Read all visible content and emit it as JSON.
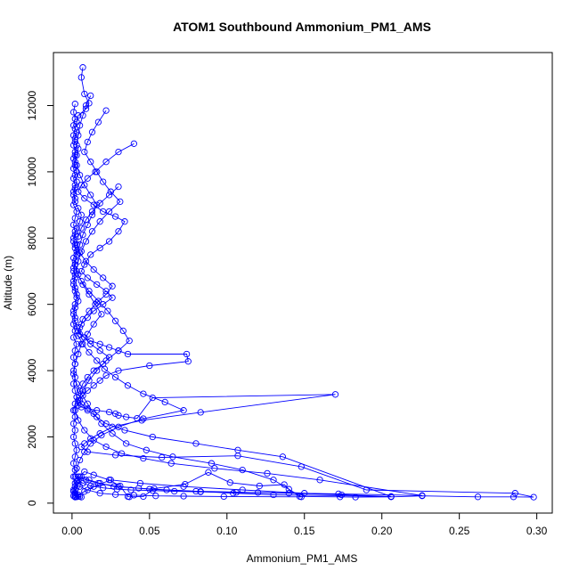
{
  "chart_data": {
    "type": "line",
    "title": "ATOM1 Southbound Ammonium_PM1_AMS",
    "xlabel": "Ammonium_PM1_AMS",
    "ylabel": "Altitude (m)",
    "xlim": [
      -0.012,
      0.31
    ],
    "ylim": [
      -300,
      13600
    ],
    "x_ticks": [
      0.0,
      0.05,
      0.1,
      0.15,
      0.2,
      0.25,
      0.3
    ],
    "x_tick_labels": [
      "0.00",
      "0.05",
      "0.10",
      "0.15",
      "0.20",
      "0.25",
      "0.30"
    ],
    "y_ticks": [
      0,
      2000,
      4000,
      6000,
      8000,
      10000,
      12000
    ],
    "y_tick_labels": [
      "0",
      "2000",
      "4000",
      "6000",
      "8000",
      "10000",
      "12000"
    ],
    "grid": false,
    "marker": "open-circle",
    "color": "#0000ff",
    "series": [
      {
        "x": [
          0.007,
          0.006,
          0.008,
          0.011,
          0.009,
          0.004,
          0.003,
          0.002,
          0.001,
          0.002,
          0.004,
          0.003,
          0.002,
          0.001,
          0.002,
          0.003,
          0.002,
          0.001,
          0.002,
          0.004,
          0.006,
          0.005,
          0.003,
          0.002,
          0.001,
          0.002,
          0.003,
          0.002,
          0.001,
          0.002,
          0.001,
          0.002,
          0.003,
          0.004,
          0.002,
          0.001,
          0.002,
          0.003,
          0.005,
          0.008,
          0.012,
          0.018,
          0.024,
          0.03,
          0.036,
          0.074,
          0.075,
          0.05,
          0.03,
          0.022,
          0.018,
          0.014,
          0.01,
          0.007,
          0.005,
          0.004,
          0.006,
          0.01,
          0.016,
          0.024,
          0.028,
          0.03,
          0.035,
          0.042,
          0.052,
          0.17,
          0.083,
          0.045,
          0.026,
          0.018,
          0.012,
          0.008,
          0.006,
          0.01,
          0.028,
          0.058,
          0.107,
          0.148,
          0.19,
          0.286,
          0.298,
          0.285,
          0.262,
          0.226,
          0.206,
          0.183,
          0.173,
          0.147,
          0.14,
          0.137,
          0.121,
          0.102,
          0.088,
          0.073,
          0.053,
          0.046,
          0.037,
          0.036,
          0.031,
          0.024,
          0.014,
          0.008,
          0.005,
          0.003,
          0.002,
          0.001,
          0.002,
          0.004,
          0.006,
          0.005,
          0.003,
          0.002
        ],
        "y": [
          13150,
          12850,
          12350,
          12070,
          11900,
          11700,
          11500,
          11300,
          11100,
          10900,
          10700,
          10500,
          10300,
          10100,
          9900,
          9700,
          9500,
          9300,
          9100,
          8900,
          8700,
          8500,
          8300,
          8100,
          7900,
          7700,
          7500,
          7300,
          7100,
          6900,
          6700,
          6500,
          6300,
          6100,
          5900,
          5700,
          5500,
          5300,
          5100,
          5000,
          4900,
          4800,
          4700,
          4600,
          4500,
          4500,
          4280,
          4150,
          4000,
          3850,
          3700,
          3550,
          3400,
          3250,
          3100,
          2950,
          2900,
          2850,
          2800,
          2750,
          2700,
          2650,
          2600,
          2560,
          3180,
          3280,
          2740,
          2500,
          2300,
          2100,
          1950,
          1800,
          1700,
          1550,
          1450,
          1380,
          1430,
          1100,
          400,
          300,
          180,
          190,
          190,
          220,
          190,
          180,
          190,
          200,
          420,
          560,
          520,
          620,
          930,
          570,
          440,
          200,
          190,
          200,
          520,
          700,
          850,
          950,
          800,
          650,
          500,
          350,
          250,
          200,
          180,
          200,
          190,
          180
        ]
      },
      {
        "x": [
          0.04,
          0.03,
          0.022,
          0.015,
          0.01,
          0.006,
          0.004,
          0.008,
          0.014,
          0.02,
          0.028,
          0.034,
          0.03,
          0.024,
          0.018,
          0.012,
          0.008,
          0.006,
          0.01,
          0.016,
          0.022,
          0.026,
          0.02,
          0.014,
          0.01,
          0.006,
          0.004,
          0.008,
          0.012,
          0.018,
          0.024,
          0.02,
          0.014,
          0.01,
          0.007,
          0.005,
          0.003,
          0.006,
          0.01,
          0.016,
          0.022,
          0.034,
          0.052,
          0.08,
          0.107,
          0.136,
          0.206,
          0.13,
          0.104,
          0.083,
          0.061,
          0.043,
          0.027,
          0.018,
          0.011,
          0.006,
          0.004,
          0.002,
          0.001
        ],
        "y": [
          10850,
          10600,
          10300,
          10000,
          9800,
          9600,
          9400,
          9200,
          9000,
          8800,
          8650,
          8500,
          8200,
          7900,
          7700,
          7500,
          7200,
          7000,
          6800,
          6600,
          6400,
          6200,
          6000,
          5800,
          5600,
          5400,
          5200,
          5000,
          4800,
          4600,
          4400,
          4200,
          4000,
          3800,
          3600,
          3400,
          3200,
          3000,
          2800,
          2600,
          2400,
          2200,
          2000,
          1800,
          1600,
          1400,
          200,
          250,
          300,
          350,
          400,
          450,
          500,
          600,
          700,
          800,
          600,
          400,
          220
        ]
      },
      {
        "x": [
          0.03,
          0.024,
          0.018,
          0.013,
          0.009,
          0.006,
          0.004,
          0.003,
          0.005,
          0.009,
          0.014,
          0.02,
          0.026,
          0.022,
          0.016,
          0.011,
          0.007,
          0.005,
          0.004,
          0.007,
          0.011,
          0.016,
          0.021,
          0.028,
          0.036,
          0.046,
          0.06,
          0.072,
          0.046,
          0.03,
          0.019,
          0.012,
          0.008,
          0.005,
          0.003,
          0.002,
          0.004,
          0.007,
          0.012,
          0.02,
          0.029,
          0.038,
          0.052,
          0.066,
          0.083,
          0.106,
          0.14,
          0.174,
          0.206,
          0.15,
          0.11,
          0.072,
          0.044,
          0.025,
          0.014,
          0.008,
          0.004,
          0.002
        ],
        "y": [
          9550,
          9300,
          9050,
          8800,
          8550,
          8300,
          8050,
          7800,
          7550,
          7300,
          7050,
          6800,
          6550,
          6300,
          6050,
          5800,
          5550,
          5300,
          5050,
          4800,
          4550,
          4300,
          4050,
          3800,
          3550,
          3300,
          3050,
          2800,
          2550,
          2300,
          2050,
          1800,
          1550,
          1300,
          1050,
          800,
          700,
          600,
          520,
          460,
          420,
          400,
          380,
          360,
          340,
          320,
          300,
          250,
          200,
          300,
          400,
          500,
          600,
          700,
          500,
          350,
          250,
          200
        ]
      },
      {
        "x": [
          0.022,
          0.017,
          0.013,
          0.01,
          0.008,
          0.012,
          0.016,
          0.02,
          0.025,
          0.031,
          0.024,
          0.018,
          0.013,
          0.009,
          0.006,
          0.004,
          0.003,
          0.006,
          0.011,
          0.017,
          0.023,
          0.028,
          0.033,
          0.037,
          0.03,
          0.022,
          0.016,
          0.011,
          0.007,
          0.004,
          0.002,
          0.004,
          0.008,
          0.014,
          0.022,
          0.032,
          0.046,
          0.064,
          0.092,
          0.126,
          0.16,
          0.226,
          0.172,
          0.12,
          0.08,
          0.05,
          0.03,
          0.017,
          0.009,
          0.004,
          0.002
        ],
        "y": [
          11850,
          11500,
          11200,
          10900,
          10600,
          10300,
          10000,
          9700,
          9400,
          9100,
          8800,
          8500,
          8200,
          7900,
          7600,
          7300,
          7000,
          6700,
          6400,
          6100,
          5800,
          5500,
          5200,
          4900,
          4600,
          4300,
          4000,
          3700,
          3400,
          3100,
          2800,
          2500,
          2200,
          1900,
          1700,
          1500,
          1350,
          1200,
          1050,
          900,
          700,
          230,
          280,
          320,
          360,
          420,
          500,
          600,
          700,
          800,
          300
        ]
      },
      {
        "x": [
          0.012,
          0.009,
          0.007,
          0.005,
          0.004,
          0.003,
          0.002,
          0.003,
          0.005,
          0.008,
          0.012,
          0.016,
          0.013,
          0.01,
          0.007,
          0.005,
          0.003,
          0.002,
          0.004,
          0.007,
          0.011,
          0.015,
          0.019,
          0.014,
          0.01,
          0.006,
          0.004,
          0.002,
          0.001,
          0.003,
          0.006,
          0.01,
          0.014,
          0.019,
          0.026,
          0.035,
          0.048,
          0.065,
          0.09,
          0.11,
          0.13,
          0.148,
          0.098,
          0.072,
          0.054,
          0.04,
          0.028,
          0.018,
          0.01,
          0.005,
          0.002
        ],
        "y": [
          12300,
          12000,
          11700,
          11400,
          11100,
          10800,
          10500,
          10200,
          9900,
          9600,
          9300,
          9000,
          8700,
          8400,
          8100,
          7800,
          7500,
          7200,
          6900,
          6600,
          6300,
          6000,
          5700,
          5400,
          5100,
          4800,
          4500,
          4200,
          3900,
          3600,
          3300,
          3000,
          2700,
          2400,
          2100,
          1800,
          1600,
          1400,
          1200,
          1000,
          700,
          190,
          200,
          210,
          220,
          240,
          260,
          300,
          400,
          500,
          200
        ]
      },
      {
        "x": [
          0.002,
          0.001,
          0.002,
          0.001,
          0.003,
          0.002,
          0.001,
          0.002,
          0.001,
          0.002,
          0.003,
          0.001,
          0.002,
          0.001,
          0.002,
          0.001,
          0.003,
          0.002,
          0.001,
          0.002,
          0.001,
          0.002,
          0.003,
          0.001,
          0.002,
          0.001,
          0.002,
          0.001,
          0.002,
          0.003,
          0.002,
          0.001,
          0.002,
          0.001,
          0.002,
          0.001,
          0.003,
          0.002,
          0.001,
          0.002,
          0.001,
          0.002,
          0.001,
          0.002,
          0.003,
          0.002,
          0.001,
          0.002,
          0.001,
          0.002,
          0.001,
          0.002,
          0.003,
          0.002,
          0.001,
          0.002,
          0.001,
          0.002,
          0.001,
          0.002
        ],
        "y": [
          12050,
          11800,
          11600,
          11400,
          11200,
          11000,
          10800,
          10600,
          10400,
          10200,
          10000,
          9800,
          9600,
          9400,
          9200,
          9000,
          8800,
          8600,
          8400,
          8200,
          8000,
          7800,
          7600,
          7400,
          7200,
          7000,
          6800,
          6600,
          6400,
          6200,
          6000,
          5800,
          5600,
          5400,
          5200,
          5000,
          4800,
          4600,
          4400,
          4200,
          4000,
          3800,
          3600,
          3400,
          3200,
          3000,
          2800,
          2600,
          2400,
          2200,
          2000,
          1800,
          1600,
          1400,
          1200,
          1000,
          800,
          600,
          400,
          200
        ]
      }
    ]
  }
}
